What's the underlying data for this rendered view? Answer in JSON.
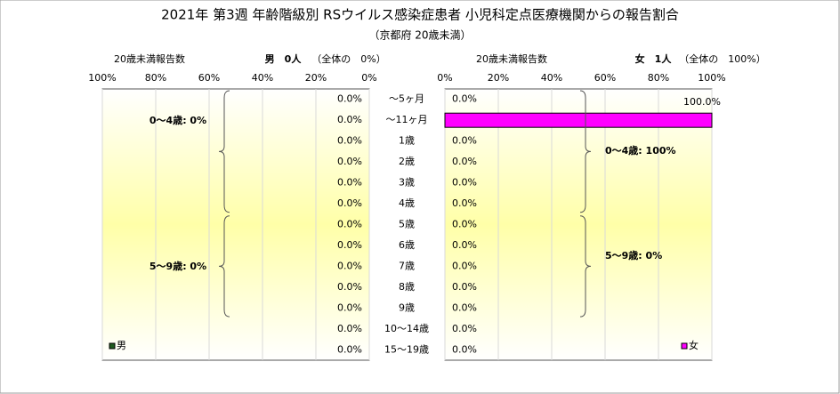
{
  "chart_data": {
    "type": "pyramid",
    "title": "2021年 第3週 年齢階級別 RSウイルス感染症患者 小児科定点医療機関からの報告割合",
    "subtitle": "（京都府 20歳未満）",
    "header_left": {
      "label": "20歳未満報告数",
      "count": "男　0人",
      "share": "（全体の　0%）"
    },
    "header_right": {
      "label": "20歳未満報告数",
      "count": "女　1人",
      "share": "（全体の　100%）"
    },
    "categories": [
      "～5ヶ月",
      "～11ヶ月",
      "1歳",
      "2歳",
      "3歳",
      "4歳",
      "5歳",
      "6歳",
      "7歳",
      "8歳",
      "9歳",
      "10～14歳",
      "15～19歳"
    ],
    "series": [
      {
        "name": "男",
        "color": "#1e5a1e",
        "side": "left",
        "values": [
          0,
          0,
          0,
          0,
          0,
          0,
          0,
          0,
          0,
          0,
          0,
          0,
          0
        ],
        "value_labels": [
          "0.0%",
          "0.0%",
          "0.0%",
          "0.0%",
          "0.0%",
          "0.0%",
          "0.0%",
          "0.0%",
          "0.0%",
          "0.0%",
          "0.0%",
          "0.0%",
          "0.0%"
        ]
      },
      {
        "name": "女",
        "color": "#ff00ff",
        "side": "right",
        "values": [
          0,
          100,
          0,
          0,
          0,
          0,
          0,
          0,
          0,
          0,
          0,
          0,
          0
        ],
        "value_labels": [
          "0.0%",
          "100.0%",
          "0.0%",
          "0.0%",
          "0.0%",
          "0.0%",
          "0.0%",
          "0.0%",
          "0.0%",
          "0.0%",
          "0.0%",
          "0.0%",
          "0.0%"
        ]
      }
    ],
    "xlim": [
      0,
      100
    ],
    "xticks": [
      {
        "value": 0,
        "label": "0%"
      },
      {
        "value": 20,
        "label": "20%"
      },
      {
        "value": 40,
        "label": "40%"
      },
      {
        "value": 60,
        "label": "60%"
      },
      {
        "value": 80,
        "label": "80%"
      },
      {
        "value": 100,
        "label": "100%"
      }
    ],
    "grid": true,
    "annotations_left": [
      "0～4歳: 0%",
      "5～9歳: 0%"
    ],
    "annotations_right": [
      "0～4歳: 100%",
      "5～9歳: 0%"
    ]
  }
}
